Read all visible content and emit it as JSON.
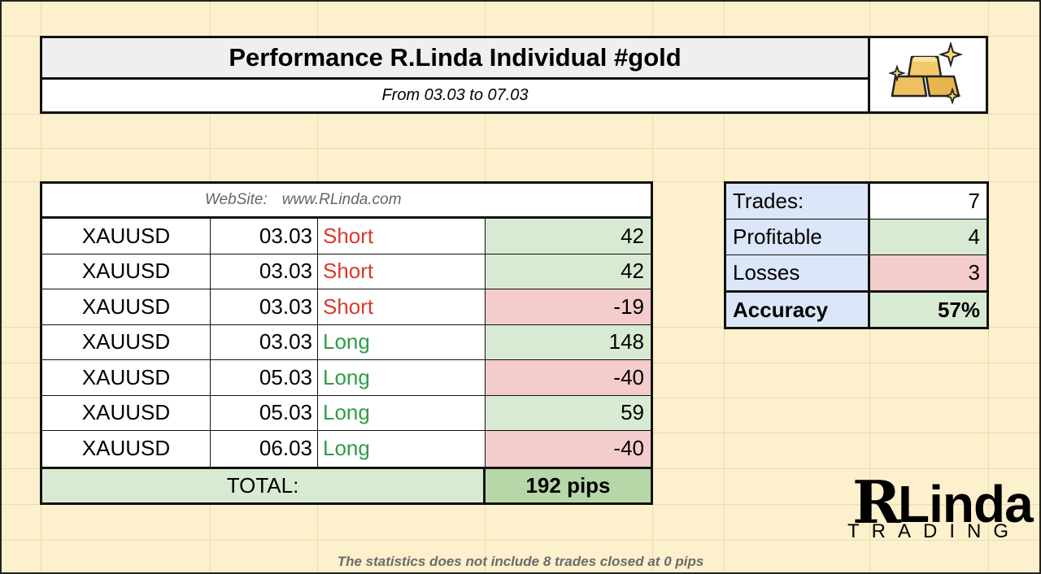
{
  "header": {
    "title": "Performance R.Linda Individual #gold",
    "subtitle": "From 03.03 to 07.03",
    "logo_icon": "gold-bars-icon"
  },
  "trades_table": {
    "website_label": "WebSite:",
    "website_url": "www.RLinda.com",
    "rows": [
      {
        "symbol": "XAUUSD",
        "date": "03.03",
        "direction": "Short",
        "pips": "42",
        "result": "profit"
      },
      {
        "symbol": "XAUUSD",
        "date": "03.03",
        "direction": "Short",
        "pips": "42",
        "result": "profit"
      },
      {
        "symbol": "XAUUSD",
        "date": "03.03",
        "direction": "Short",
        "pips": "-19",
        "result": "loss"
      },
      {
        "symbol": "XAUUSD",
        "date": "03.03",
        "direction": "Long",
        "pips": "148",
        "result": "profit"
      },
      {
        "symbol": "XAUUSD",
        "date": "05.03",
        "direction": "Long",
        "pips": "-40",
        "result": "loss"
      },
      {
        "symbol": "XAUUSD",
        "date": "05.03",
        "direction": "Long",
        "pips": "59",
        "result": "profit"
      },
      {
        "symbol": "XAUUSD",
        "date": "06.03",
        "direction": "Long",
        "pips": "-40",
        "result": "loss"
      }
    ],
    "total_label": "TOTAL:",
    "total_value": "192 pips"
  },
  "stats": {
    "trades_label": "Trades:",
    "trades_value": "7",
    "profitable_label": "Profitable",
    "profitable_value": "4",
    "losses_label": "Losses",
    "losses_value": "3",
    "accuracy_label": "Accuracy",
    "accuracy_value": "57%"
  },
  "brand": {
    "r": "R",
    "linda": "Linda",
    "trading": "TRADING"
  },
  "footnote": "The statistics does not include 8 trades closed at 0 pips",
  "colors": {
    "background": "#fdf0cc",
    "profit_fill": "#d9ead3",
    "loss_fill": "#f4cccc",
    "short_text": "#d93a2b",
    "long_text": "#2e9e47",
    "stats_label_fill": "#dbe6f8"
  }
}
